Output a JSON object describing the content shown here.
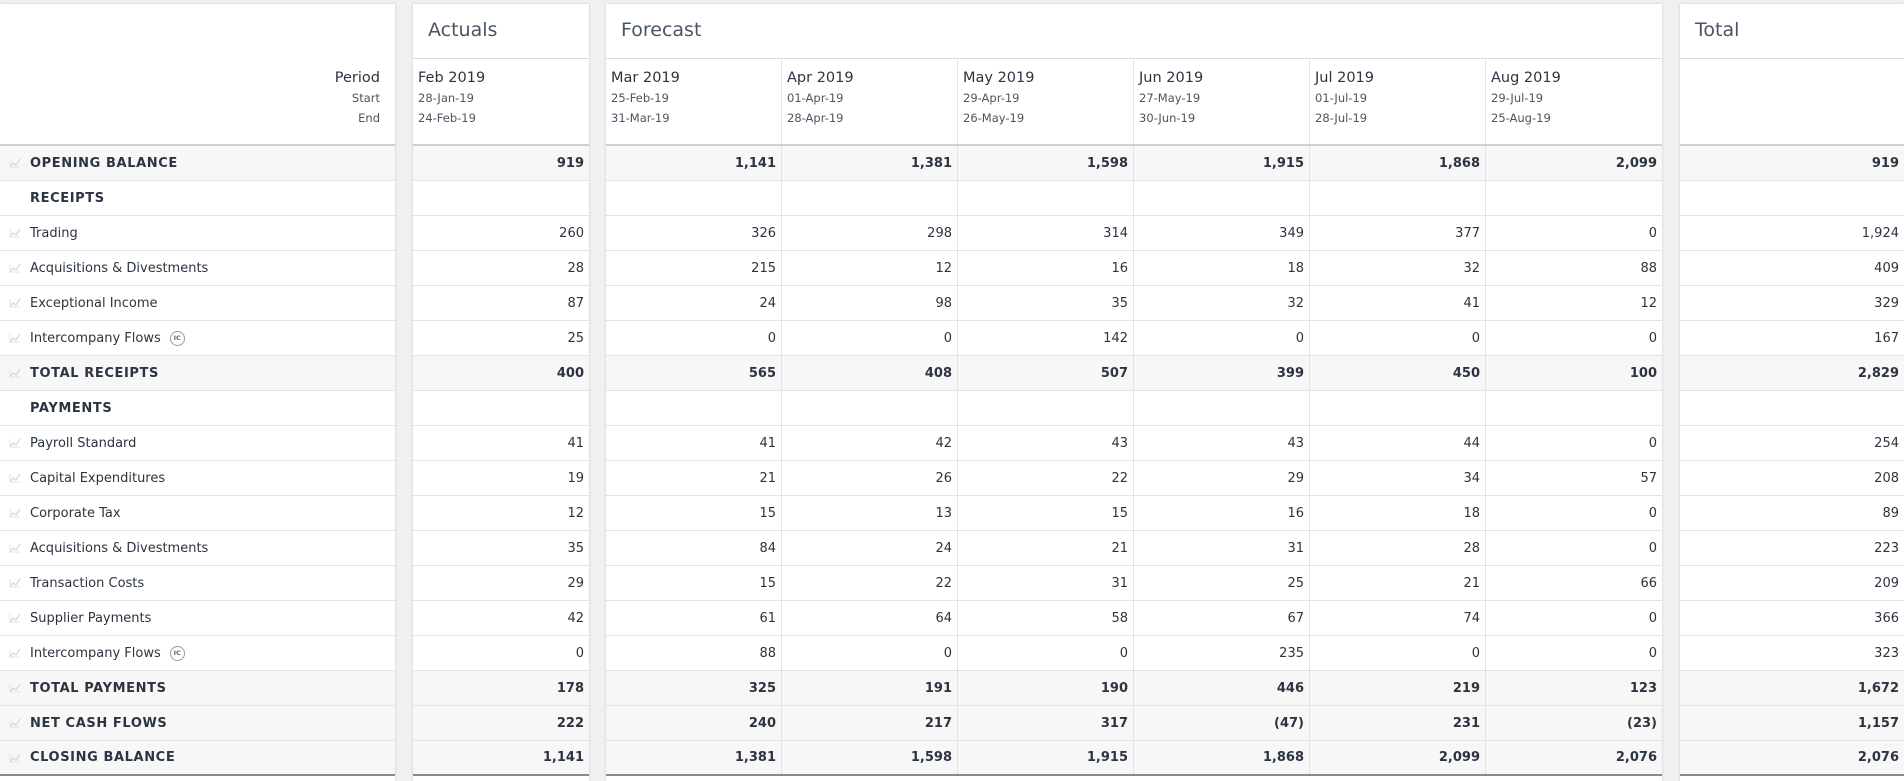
{
  "labels_header": {
    "period": "Period",
    "start": "Start",
    "end": "End"
  },
  "actuals": {
    "title": "Actuals",
    "periods": [
      {
        "name": "Feb 2019",
        "start": "28-Jan-19",
        "end": "24-Feb-19"
      }
    ]
  },
  "forecast": {
    "title": "Forecast",
    "periods": [
      {
        "name": "Mar 2019",
        "start": "25-Feb-19",
        "end": "31-Mar-19"
      },
      {
        "name": "Apr 2019",
        "start": "01-Apr-19",
        "end": "28-Apr-19"
      },
      {
        "name": "May 2019",
        "start": "29-Apr-19",
        "end": "26-May-19"
      },
      {
        "name": "Jun 2019",
        "start": "27-May-19",
        "end": "30-Jun-19"
      },
      {
        "name": "Jul 2019",
        "start": "01-Jul-19",
        "end": "28-Jul-19"
      },
      {
        "name": "Aug 2019",
        "start": "29-Jul-19",
        "end": "25-Aug-19"
      }
    ]
  },
  "total": {
    "title": "Total"
  },
  "icons": {
    "trend": "trend-icon",
    "ic_badge": "IC"
  },
  "rows": [
    {
      "label": "OPENING BALANCE",
      "kind": "total",
      "ic": false,
      "values": [
        "919",
        "1,141",
        "1,381",
        "1,598",
        "1,915",
        "1,868",
        "2,099",
        "919"
      ]
    },
    {
      "label": "RECEIPTS",
      "kind": "section",
      "ic": false,
      "values": [
        "",
        "",
        "",
        "",
        "",
        "",
        "",
        ""
      ]
    },
    {
      "label": "Trading",
      "kind": "line",
      "ic": false,
      "values": [
        "260",
        "326",
        "298",
        "314",
        "349",
        "377",
        "0",
        "1,924"
      ]
    },
    {
      "label": "Acquisitions & Divestments",
      "kind": "line",
      "ic": false,
      "values": [
        "28",
        "215",
        "12",
        "16",
        "18",
        "32",
        "88",
        "409"
      ]
    },
    {
      "label": "Exceptional Income",
      "kind": "line",
      "ic": false,
      "values": [
        "87",
        "24",
        "98",
        "35",
        "32",
        "41",
        "12",
        "329"
      ]
    },
    {
      "label": "Intercompany Flows",
      "kind": "line",
      "ic": true,
      "values": [
        "25",
        "0",
        "0",
        "142",
        "0",
        "0",
        "0",
        "167"
      ]
    },
    {
      "label": "TOTAL RECEIPTS",
      "kind": "total",
      "ic": false,
      "values": [
        "400",
        "565",
        "408",
        "507",
        "399",
        "450",
        "100",
        "2,829"
      ]
    },
    {
      "label": "PAYMENTS",
      "kind": "section",
      "ic": false,
      "values": [
        "",
        "",
        "",
        "",
        "",
        "",
        "",
        ""
      ]
    },
    {
      "label": "Payroll Standard",
      "kind": "line",
      "ic": false,
      "values": [
        "41",
        "41",
        "42",
        "43",
        "43",
        "44",
        "0",
        "254"
      ]
    },
    {
      "label": "Capital Expenditures",
      "kind": "line",
      "ic": false,
      "values": [
        "19",
        "21",
        "26",
        "22",
        "29",
        "34",
        "57",
        "208"
      ]
    },
    {
      "label": "Corporate Tax",
      "kind": "line",
      "ic": false,
      "values": [
        "12",
        "15",
        "13",
        "15",
        "16",
        "18",
        "0",
        "89"
      ]
    },
    {
      "label": "Acquisitions & Divestments",
      "kind": "line",
      "ic": false,
      "values": [
        "35",
        "84",
        "24",
        "21",
        "31",
        "28",
        "0",
        "223"
      ]
    },
    {
      "label": "Transaction Costs",
      "kind": "line",
      "ic": false,
      "values": [
        "29",
        "15",
        "22",
        "31",
        "25",
        "21",
        "66",
        "209"
      ]
    },
    {
      "label": "Supplier Payments",
      "kind": "line",
      "ic": false,
      "values": [
        "42",
        "61",
        "64",
        "58",
        "67",
        "74",
        "0",
        "366"
      ]
    },
    {
      "label": "Intercompany Flows",
      "kind": "line",
      "ic": true,
      "values": [
        "0",
        "88",
        "0",
        "0",
        "235",
        "0",
        "0",
        "323"
      ]
    },
    {
      "label": "TOTAL PAYMENTS",
      "kind": "total",
      "ic": false,
      "values": [
        "178",
        "325",
        "191",
        "190",
        "446",
        "219",
        "123",
        "1,672"
      ]
    },
    {
      "label": "NET CASH FLOWS",
      "kind": "total",
      "ic": false,
      "values": [
        "222",
        "240",
        "217",
        "317",
        "(47)",
        "231",
        "(23)",
        "1,157"
      ]
    },
    {
      "label": "CLOSING BALANCE",
      "kind": "total",
      "ic": false,
      "values": [
        "1,141",
        "1,381",
        "1,598",
        "1,915",
        "1,868",
        "2,099",
        "2,076",
        "2,076"
      ]
    }
  ]
}
